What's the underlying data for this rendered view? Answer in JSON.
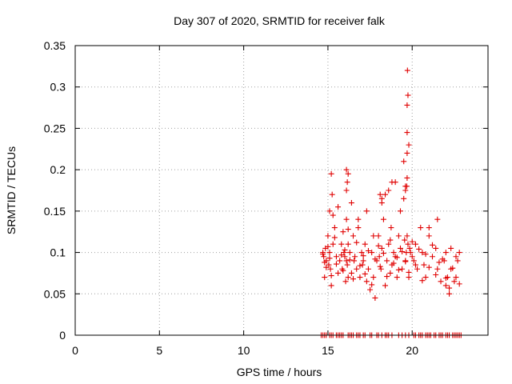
{
  "chart_data": {
    "type": "scatter",
    "title": "Day 307 of 2020, SRMTID for receiver falk",
    "xlabel": "GPS time / hours",
    "ylabel": "SRMTID / TECUs",
    "xlim": [
      0,
      24.5
    ],
    "ylim": [
      0,
      0.35
    ],
    "grid": true,
    "marker": "+",
    "color": "#e00000",
    "xticks": [
      0,
      5,
      10,
      15,
      20
    ],
    "xtick_labels": [
      "0",
      "5",
      "10",
      "15",
      "20"
    ],
    "yticks": [
      0,
      0.05,
      0.1,
      0.15,
      0.2,
      0.25,
      0.3,
      0.35
    ],
    "ytick_labels": [
      "0",
      "0.05",
      "0.1",
      "0.15",
      "0.2",
      "0.25",
      "0.3",
      "0.35"
    ],
    "series": [
      {
        "name": "SRMTID",
        "x": [
          14.7,
          14.75,
          14.8,
          14.85,
          14.9,
          15.0,
          15.05,
          15.1,
          15.1,
          15.15,
          15.2,
          15.3,
          15.4,
          15.5,
          15.6,
          15.7,
          15.8,
          15.85,
          15.9,
          15.95,
          16.0,
          16.05,
          16.1,
          16.1,
          16.15,
          16.2,
          16.2,
          16.3,
          16.4,
          16.5,
          16.55,
          16.6,
          16.7,
          16.8,
          16.9,
          17.0,
          17.05,
          17.1,
          17.2,
          17.3,
          17.4,
          17.5,
          17.6,
          17.7,
          17.8,
          17.9,
          18.0,
          18.05,
          18.1,
          18.15,
          18.2,
          18.3,
          18.4,
          18.5,
          18.6,
          18.7,
          18.75,
          18.8,
          18.9,
          19.0,
          19.1,
          19.2,
          19.3,
          19.4,
          19.5,
          19.55,
          19.6,
          19.65,
          19.7,
          19.75,
          19.8,
          19.85,
          19.9,
          20.0,
          20.1,
          20.2,
          20.3,
          20.5,
          20.6,
          20.7,
          20.8,
          21.0,
          21.2,
          21.4,
          21.5,
          21.7,
          21.9,
          22.0,
          22.1,
          22.2,
          22.3,
          22.5,
          22.6,
          22.7,
          22.8,
          14.7,
          14.8,
          14.9,
          15.0,
          15.1,
          15.2,
          15.4,
          15.5,
          15.8,
          15.9,
          16.0,
          16.2,
          16.3,
          16.5,
          16.7,
          16.9,
          17.1,
          17.2,
          17.4,
          17.6,
          17.8,
          18.0,
          18.1,
          18.3,
          18.5,
          18.7,
          18.9,
          19.1,
          19.2,
          19.4,
          19.6,
          19.8,
          20.0,
          20.2,
          20.4,
          20.6,
          20.8,
          21.0,
          21.2,
          21.4,
          21.6,
          21.8,
          22.0,
          22.2,
          22.4,
          22.6,
          22.8,
          15.3,
          15.6,
          16.1,
          16.4,
          16.8,
          17.3,
          17.7,
          18.2,
          18.6,
          19.0,
          19.3,
          19.6,
          19.7,
          19.7,
          19.72,
          19.75,
          19.7,
          19.68,
          19.8,
          19.7,
          19.6,
          19.5,
          18.8,
          18.4,
          18.2,
          16.1,
          16.2,
          16.15,
          15.2,
          15.25,
          21.0,
          21.5,
          22.0,
          22.3
        ],
        "y": [
          0.1,
          0.095,
          0.07,
          0.105,
          0.09,
          0.12,
          0.085,
          0.15,
          0.1,
          0.08,
          0.06,
          0.11,
          0.13,
          0.095,
          0.075,
          0.09,
          0.11,
          0.08,
          0.125,
          0.1,
          0.095,
          0.065,
          0.14,
          0.09,
          0.085,
          0.07,
          0.11,
          0.1,
          0.075,
          0.12,
          0.09,
          0.095,
          0.08,
          0.13,
          0.07,
          0.1,
          0.085,
          0.09,
          0.11,
          0.065,
          0.08,
          0.055,
          0.1,
          0.07,
          0.045,
          0.09,
          0.12,
          0.095,
          0.17,
          0.08,
          0.105,
          0.14,
          0.06,
          0.09,
          0.11,
          0.075,
          0.13,
          0.085,
          0.1,
          0.095,
          0.07,
          0.12,
          0.105,
          0.08,
          0.165,
          0.115,
          0.09,
          0.1,
          0.12,
          0.11,
          0.07,
          0.105,
          0.1,
          0.095,
          0.09,
          0.11,
          0.08,
          0.13,
          0.1,
          0.085,
          0.07,
          0.12,
          0.095,
          0.105,
          0.08,
          0.065,
          0.09,
          0.06,
          0.07,
          0.05,
          0.08,
          0.065,
          0.07,
          0.09,
          0.1,
          0.098,
          0.088,
          0.082,
          0.107,
          0.093,
          0.072,
          0.118,
          0.086,
          0.097,
          0.078,
          0.103,
          0.128,
          0.091,
          0.068,
          0.112,
          0.084,
          0.096,
          0.074,
          0.102,
          0.061,
          0.092,
          0.108,
          0.083,
          0.099,
          0.071,
          0.115,
          0.087,
          0.094,
          0.079,
          0.101,
          0.089,
          0.076,
          0.113,
          0.085,
          0.104,
          0.066,
          0.098,
          0.082,
          0.109,
          0.073,
          0.088,
          0.092,
          0.069,
          0.057,
          0.081,
          0.095,
          0.062,
          0.145,
          0.155,
          0.175,
          0.16,
          0.14,
          0.15,
          0.12,
          0.16,
          0.175,
          0.185,
          0.15,
          0.18,
          0.22,
          0.245,
          0.32,
          0.29,
          0.278,
          0.18,
          0.23,
          0.19,
          0.175,
          0.21,
          0.185,
          0.17,
          0.165,
          0.2,
          0.195,
          0.185,
          0.195,
          0.17,
          0.13,
          0.14,
          0.1,
          0.105
        ],
        "zero_x": [
          14.6,
          14.7,
          14.8,
          14.9,
          15.1,
          15.2,
          15.3,
          15.5,
          15.6,
          15.7,
          15.8,
          15.9,
          16.2,
          16.3,
          16.4,
          16.5,
          16.7,
          16.8,
          16.9,
          17.1,
          17.2,
          17.5,
          17.6,
          17.9,
          18.0,
          18.2,
          18.4,
          18.5,
          18.6,
          18.8,
          19.2,
          19.4,
          19.6,
          19.8,
          20.1,
          20.2,
          20.4,
          20.5,
          20.6,
          20.8,
          20.9,
          21.0,
          21.1,
          21.3,
          21.4,
          21.6,
          21.7,
          21.8,
          22.0,
          22.1,
          22.2,
          22.4,
          22.5,
          22.6,
          22.7,
          22.8,
          22.9
        ]
      }
    ]
  }
}
